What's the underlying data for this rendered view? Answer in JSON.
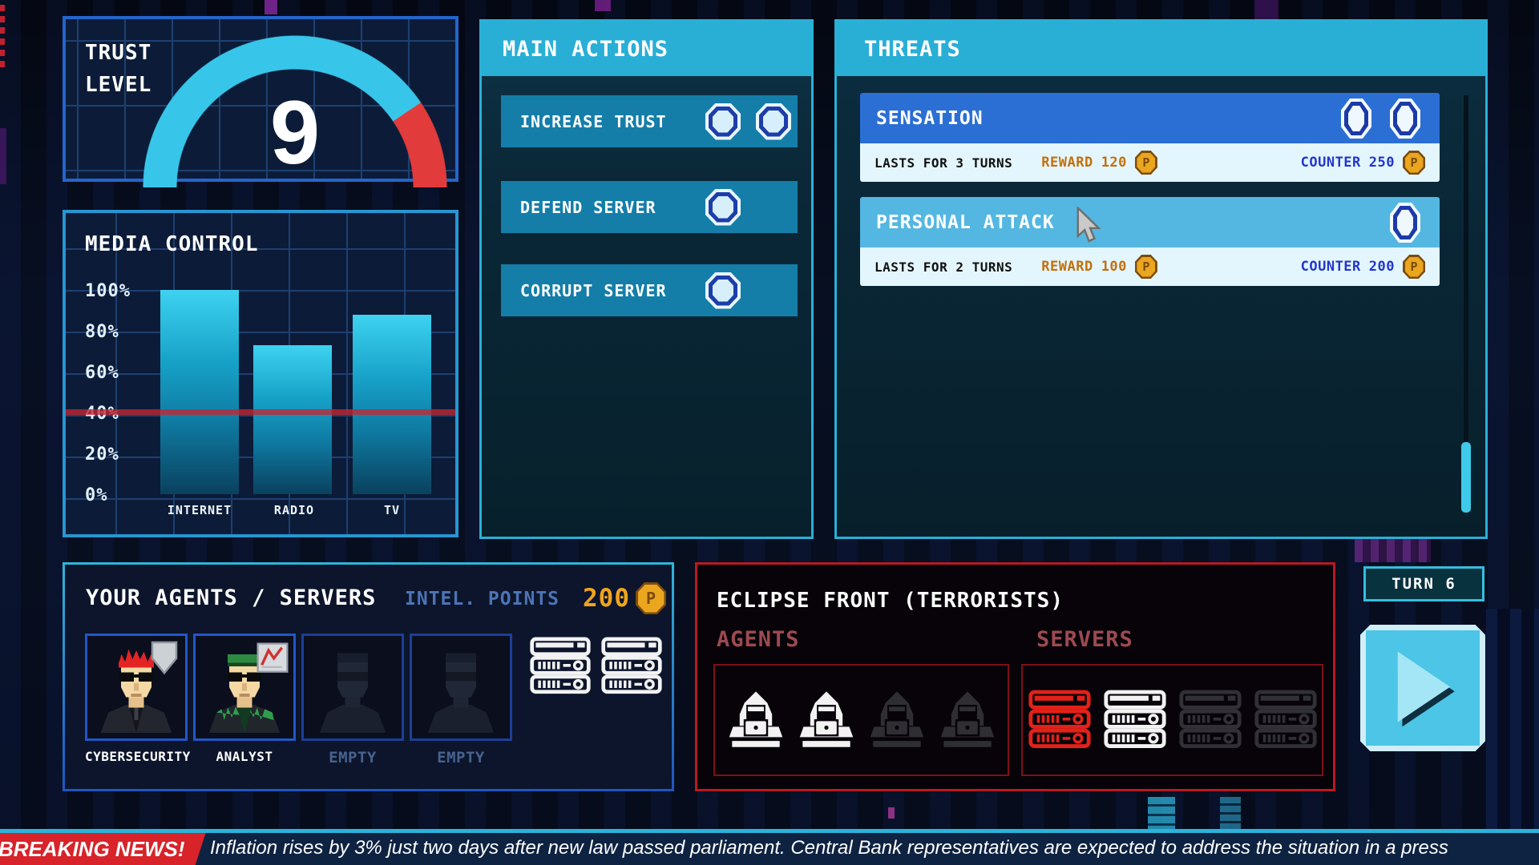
{
  "currency_symbol": "P",
  "trust_panel": {
    "title_line1": "TRUST",
    "title_line2": "LEVEL",
    "value": "9"
  },
  "chart_data": {
    "type": "bar",
    "title": "MEDIA CONTROL",
    "categories": [
      "INTERNET",
      "RADIO",
      "TV"
    ],
    "values": [
      100,
      73,
      88
    ],
    "unit": "%",
    "ylim": [
      0,
      100
    ],
    "yticks": [
      "100%",
      "80%",
      "60%",
      "40%",
      "20%",
      "0%"
    ],
    "threshold_value": 40,
    "grid": true,
    "bar_color": "cyan-gradient",
    "threshold_color": "#c42632"
  },
  "main_actions": {
    "title": "MAIN ACTIONS",
    "actions": [
      {
        "label": "INCREASE TRUST",
        "cost_tokens": 2
      },
      {
        "label": "DEFEND SERVER",
        "cost_tokens": 1
      },
      {
        "label": "CORRUPT SERVER",
        "cost_tokens": 1
      }
    ]
  },
  "threats": {
    "title": "THREATS",
    "items": [
      {
        "name": "SENSATION",
        "duration": "LASTS FOR 3 TURNS",
        "reward_label": "REWARD",
        "reward": "120",
        "counter_label": "COUNTER",
        "counter": "250",
        "slot_tokens": 2
      },
      {
        "name": "PERSONAL ATTACK",
        "duration": "LASTS FOR 2 TURNS",
        "reward_label": "REWARD",
        "reward": "100",
        "counter_label": "COUNTER",
        "counter": "200",
        "slot_tokens": 1
      }
    ]
  },
  "agents_panel": {
    "title": "YOUR AGENTS / SERVERS",
    "intel_label": "INTEL. POINTS",
    "intel_value": "200",
    "slots": [
      {
        "label": "CYBERSECURITY",
        "state": "filled"
      },
      {
        "label": "ANALYST",
        "state": "filled"
      },
      {
        "label": "EMPTY",
        "state": "empty"
      },
      {
        "label": "EMPTY",
        "state": "empty"
      }
    ],
    "server_count": 2
  },
  "enemy_panel": {
    "title": "ECLIPSE FRONT (TERRORISTS)",
    "agents_label": "AGENTS",
    "servers_label": "SERVERS",
    "agent_states": [
      "active",
      "active",
      "inactive",
      "inactive"
    ],
    "server_states": [
      "red",
      "white",
      "inactive",
      "inactive"
    ]
  },
  "turn_indicator": {
    "label": "TURN 6"
  },
  "news_ticker": {
    "badge": "BREAKING NEWS!",
    "message": "Inflation rises by 3% just two days after new law passed parliament. Central Bank representatives are expected to address the situation in a press"
  },
  "colors": {
    "accent_cyan": "#29aed6",
    "accent_blue": "#2b6fd4",
    "alert_red": "#d8232a",
    "coin_gold": "#eaa61f",
    "trust_arc": "#38c5ea",
    "trust_arc_warning": "#e23b3b"
  }
}
